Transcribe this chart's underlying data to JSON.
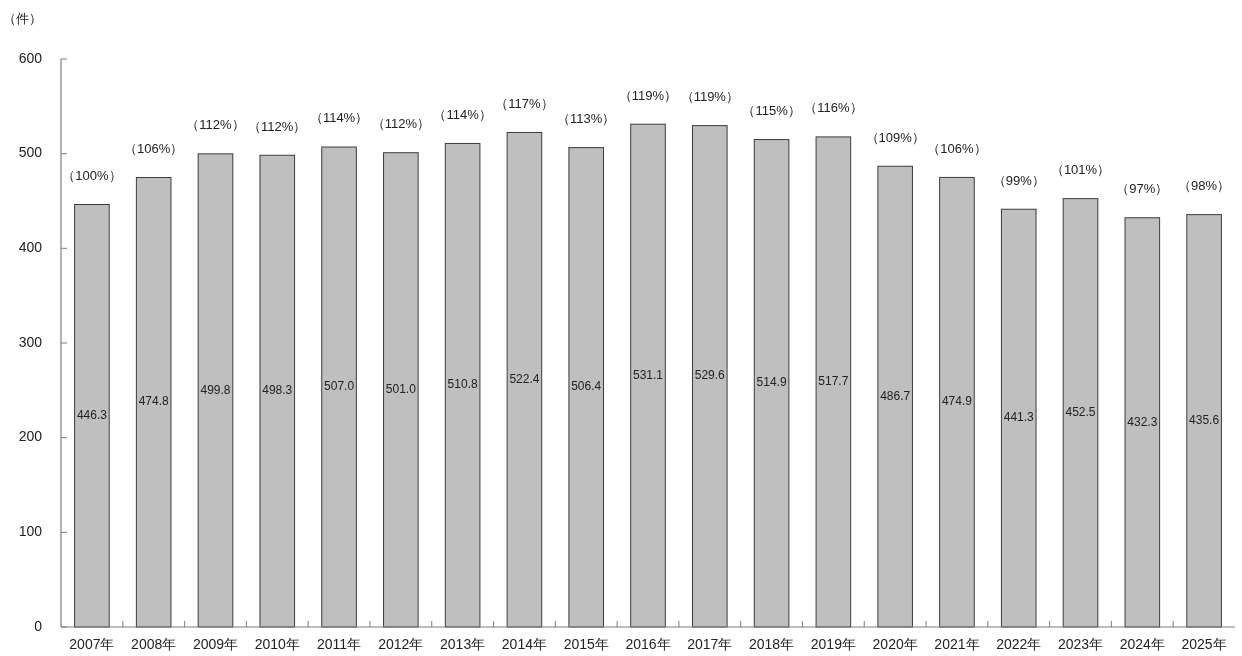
{
  "chart_data": {
    "type": "bar",
    "ylabel": "（件）",
    "categories": [
      "2007年",
      "2008年",
      "2009年",
      "2010年",
      "2011年",
      "2012年",
      "2013年",
      "2014年",
      "2015年",
      "2016年",
      "2017年",
      "2018年",
      "2019年",
      "2020年",
      "2021年",
      "2022年",
      "2023年",
      "2024年",
      "2025年"
    ],
    "values": [
      446.3,
      474.8,
      499.8,
      498.3,
      507.0,
      501.0,
      510.8,
      522.4,
      506.4,
      531.1,
      529.6,
      514.9,
      517.7,
      486.7,
      474.9,
      441.3,
      452.5,
      432.3,
      435.6
    ],
    "value_labels": [
      "446.3",
      "474.8",
      "499.8",
      "498.3",
      "507.0",
      "501.0",
      "510.8",
      "522.4",
      "506.4",
      "531.1",
      "529.6",
      "514.9",
      "517.7",
      "486.7",
      "474.9",
      "441.3",
      "452.5",
      "432.3",
      "435.6"
    ],
    "color": "#bfbfbf",
    "ylim": [
      0,
      600
    ],
    "yticks": [
      0,
      100,
      200,
      300,
      400,
      500,
      600
    ],
    "annotations": [
      {
        "text": "（100%）",
        "x": "2007年",
        "y": 446.3
      },
      {
        "text": "（106%）",
        "x": "2008年",
        "y": 474.8
      },
      {
        "text": "（112%）",
        "x": "2009年",
        "y": 499.8
      },
      {
        "text": "（112%）",
        "x": "2010年",
        "y": 498.3
      },
      {
        "text": "（114%）",
        "x": "2011年",
        "y": 507.0
      },
      {
        "text": "（112%）",
        "x": "2012年",
        "y": 501.0
      },
      {
        "text": "（114%）",
        "x": "2013年",
        "y": 510.8
      },
      {
        "text": "（117%）",
        "x": "2014年",
        "y": 522.4
      },
      {
        "text": "（113%）",
        "x": "2015年",
        "y": 506.4
      },
      {
        "text": "（119%）",
        "x": "2016年",
        "y": 531.1
      },
      {
        "text": "（119%）",
        "x": "2017年",
        "y": 529.6
      },
      {
        "text": "（115%）",
        "x": "2018年",
        "y": 514.9
      },
      {
        "text": "（116%）",
        "x": "2019年",
        "y": 517.7
      },
      {
        "text": "（109%）",
        "x": "2020年",
        "y": 486.7
      },
      {
        "text": "（106%）",
        "x": "2021年",
        "y": 474.9
      },
      {
        "text": "（99%）",
        "x": "2022年",
        "y": 441.3
      },
      {
        "text": "（101%）",
        "x": "2023年",
        "y": 452.5
      },
      {
        "text": "（97%）",
        "x": "2024年",
        "y": 432.3
      },
      {
        "text": "（98%）",
        "x": "2025年",
        "y": 435.6
      }
    ]
  }
}
